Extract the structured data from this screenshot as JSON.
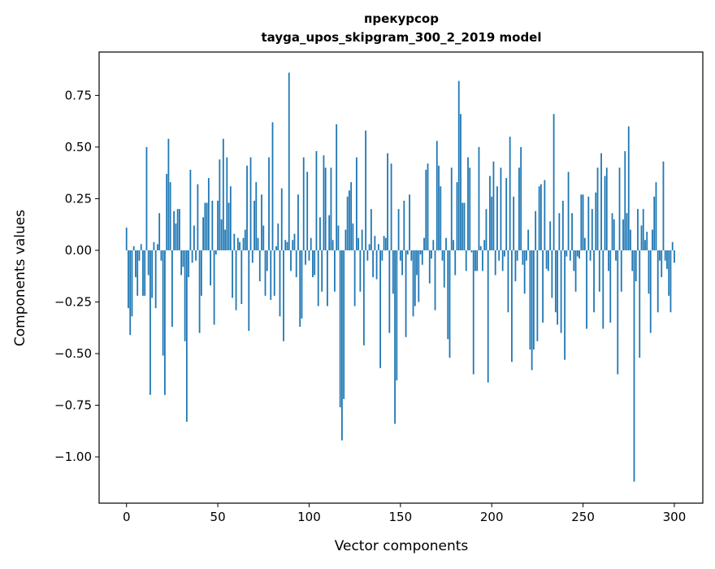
{
  "chart_data": {
    "type": "bar",
    "title_line1": "прекурсор",
    "title_line2": "tayga_upos_skipgram_300_2_2019 model",
    "xlabel": "Vector components",
    "ylabel": "Components values",
    "xlim": [
      -15,
      315.6
    ],
    "ylim": [
      -1.224,
      0.96
    ],
    "xticks": [
      0,
      50,
      100,
      150,
      200,
      250,
      300
    ],
    "xtick_labels": [
      "0",
      "50",
      "100",
      "150",
      "200",
      "250",
      "300"
    ],
    "yticks": [
      0.75,
      0.5,
      0.25,
      0,
      -0.25,
      -0.5,
      -0.75,
      -1.0
    ],
    "ytick_labels": [
      "0.75",
      "0.50",
      "0.25",
      "0.00",
      "−0.25",
      "−0.50",
      "−0.75",
      "−1.00"
    ],
    "grid": false,
    "color": "#1f77b4",
    "values": [
      0.11,
      -0.28,
      -0.41,
      -0.32,
      0.02,
      -0.13,
      -0.22,
      -0.05,
      0.03,
      -0.22,
      -0.22,
      0.5,
      -0.12,
      -0.7,
      -0.23,
      0.04,
      -0.28,
      0.03,
      0.18,
      -0.05,
      -0.51,
      -0.7,
      0.37,
      0.54,
      0.33,
      -0.37,
      0.19,
      0.13,
      0.2,
      0.2,
      -0.12,
      -0.08,
      -0.44,
      -0.83,
      -0.13,
      0.39,
      -0.06,
      0.12,
      -0.05,
      0.32,
      -0.4,
      -0.22,
      0.16,
      0.23,
      0.23,
      0.35,
      -0.17,
      0.24,
      -0.36,
      -0.02,
      0.24,
      0.44,
      0.15,
      0.54,
      0.1,
      0.45,
      0.23,
      0.31,
      -0.23,
      0.08,
      -0.29,
      0.06,
      0.04,
      -0.26,
      0.06,
      0.1,
      0.41,
      -0.39,
      0.45,
      -0.06,
      0.24,
      0.33,
      0.06,
      -0.15,
      0.27,
      0.12,
      -0.22,
      -0.1,
      0.45,
      -0.24,
      0.62,
      -0.22,
      0.02,
      0.13,
      -0.32,
      0.3,
      -0.44,
      0.05,
      0.04,
      0.86,
      -0.1,
      0.05,
      0.08,
      -0.13,
      0.27,
      -0.37,
      -0.33,
      0.45,
      -0.07,
      0.38,
      -0.05,
      0.06,
      -0.13,
      -0.12,
      0.48,
      -0.27,
      0.16,
      -0.2,
      0.46,
      0.4,
      -0.27,
      0.17,
      0.4,
      0.05,
      -0.2,
      0.61,
      0.12,
      -0.76,
      -0.92,
      -0.72,
      0.1,
      0.26,
      0.29,
      0.33,
      0.13,
      -0.27,
      0.45,
      0.06,
      -0.2,
      0.1,
      -0.46,
      0.58,
      -0.05,
      0.03,
      0.2,
      -0.13,
      0.07,
      -0.14,
      0.03,
      -0.57,
      -0.05,
      0.07,
      0.06,
      0.47,
      -0.4,
      0.42,
      -0.21,
      -0.84,
      -0.63,
      0.2,
      -0.05,
      -0.12,
      0.24,
      -0.42,
      -0.02,
      0.27,
      -0.05,
      -0.32,
      -0.27,
      -0.12,
      -0.25,
      -0.02,
      -0.07,
      0.06,
      0.39,
      0.42,
      -0.16,
      -0.04,
      0.05,
      -0.29,
      0.53,
      0.41,
      0.31,
      -0.05,
      -0.18,
      0.06,
      -0.43,
      -0.52,
      0.4,
      0.05,
      -0.12,
      0.33,
      0.82,
      0.66,
      0.23,
      0.23,
      -0.1,
      0.45,
      0.4,
      -0.01,
      -0.6,
      -0.1,
      -0.1,
      0.5,
      0.02,
      -0.1,
      0.05,
      0.2,
      -0.64,
      0.36,
      0.26,
      0.43,
      -0.12,
      0.31,
      -0.05,
      0.4,
      -0.1,
      -0.03,
      0.35,
      -0.3,
      0.55,
      -0.54,
      0.26,
      -0.15,
      -0.05,
      0.4,
      0.5,
      -0.07,
      -0.21,
      -0.05,
      0.1,
      -0.48,
      -0.58,
      -0.48,
      0.19,
      -0.44,
      0.31,
      0.32,
      -0.35,
      0.34,
      -0.09,
      -0.1,
      0.14,
      -0.23,
      0.66,
      -0.3,
      -0.36,
      0.18,
      -0.4,
      0.24,
      -0.53,
      -0.03,
      0.38,
      -0.05,
      0.18,
      -0.1,
      -0.2,
      -0.03,
      -0.04,
      0.27,
      0.27,
      0.06,
      -0.38,
      0.26,
      -0.05,
      0.2,
      -0.3,
      0.28,
      0.4,
      -0.2,
      0.47,
      -0.38,
      0.36,
      0.4,
      -0.1,
      -0.35,
      0.18,
      0.15,
      -0.05,
      -0.6,
      0.4,
      -0.2,
      0.15,
      0.48,
      0.18,
      0.6,
      0.1,
      -0.1,
      -1.12,
      -0.15,
      0.2,
      -0.52,
      0.12,
      0.2,
      0.05,
      0.09,
      -0.21,
      -0.4,
      0.1,
      0.26,
      0.33,
      -0.3,
      -0.05,
      -0.13,
      0.43,
      -0.05,
      -0.09,
      -0.22,
      -0.3,
      0.04,
      -0.06
    ]
  }
}
